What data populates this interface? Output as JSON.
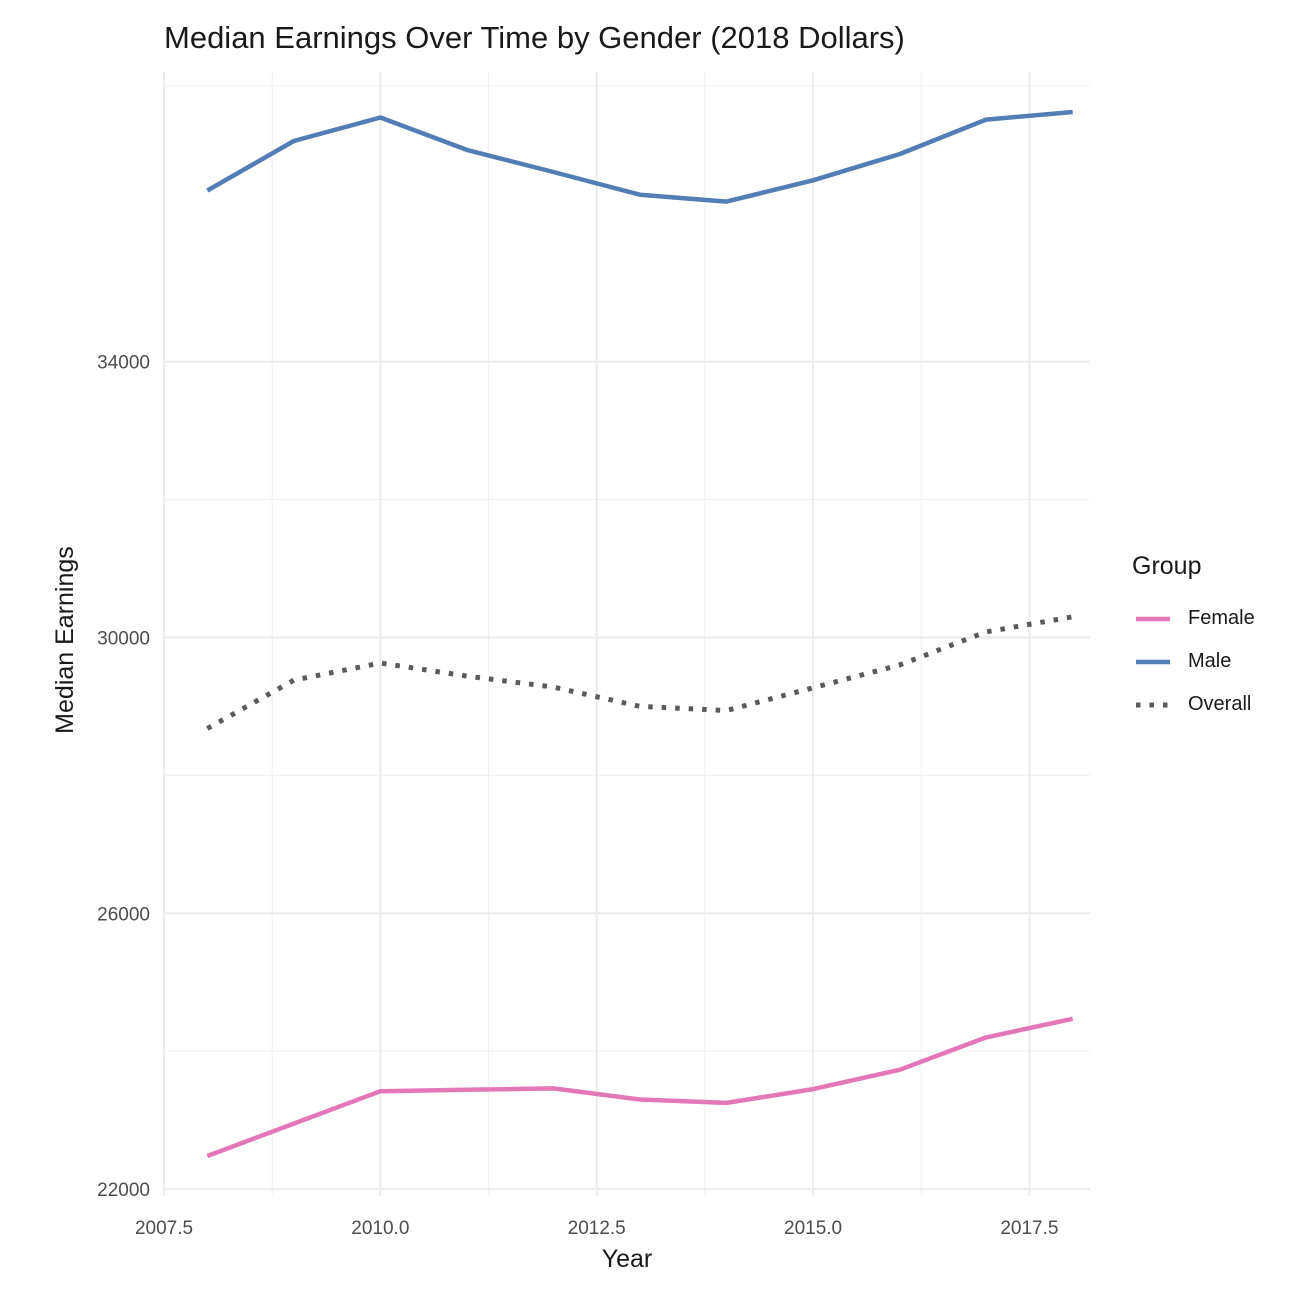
{
  "chart_data": {
    "type": "line",
    "title": "Median Earnings Over Time by Gender (2018 Dollars)",
    "xlabel": "Year",
    "ylabel": "Median Earnings",
    "xlim": [
      2007.5,
      2018.2
    ],
    "ylim": [
      21900,
      38200
    ],
    "x_ticks": [
      2007.5,
      2010.0,
      2012.5,
      2015.0,
      2017.5
    ],
    "x_tick_labels": [
      "2007.5",
      "2010.0",
      "2012.5",
      "2015.0",
      "2017.5"
    ],
    "y_ticks": [
      22000,
      26000,
      30000,
      34000
    ],
    "y_tick_labels": [
      "22000",
      "26000",
      "30000",
      "34000"
    ],
    "x": [
      2008,
      2009,
      2010,
      2011,
      2012,
      2013,
      2014,
      2015,
      2016,
      2017,
      2018
    ],
    "series": [
      {
        "name": "Female",
        "color": "#E377B8",
        "dash": "solid",
        "values": [
          22480,
          22950,
          23420,
          23440,
          23460,
          23300,
          23250,
          23450,
          23730,
          24200,
          24470
        ]
      },
      {
        "name": "Male",
        "color": "#527DB5",
        "dash": "solid",
        "values": [
          36480,
          37200,
          37540,
          37070,
          36750,
          36420,
          36320,
          36630,
          37010,
          37510,
          37620
        ]
      },
      {
        "name": "Overall",
        "color": "#5a5a5a",
        "dash": "dotted",
        "values": [
          28680,
          29380,
          29630,
          29440,
          29280,
          29000,
          28940,
          29270,
          29600,
          30080,
          30300
        ]
      }
    ],
    "grid": true,
    "legend": {
      "title": "Group",
      "position": "right"
    }
  }
}
